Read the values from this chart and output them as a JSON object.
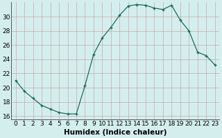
{
  "x": [
    0,
    1,
    2,
    3,
    4,
    5,
    6,
    7,
    8,
    9,
    10,
    11,
    12,
    13,
    14,
    15,
    16,
    17,
    18,
    19,
    20,
    21,
    22,
    23
  ],
  "y": [
    21.0,
    19.5,
    18.5,
    17.5,
    17.0,
    16.5,
    16.3,
    16.3,
    20.3,
    24.7,
    27.0,
    28.5,
    30.2,
    31.5,
    31.7,
    31.6,
    31.2,
    31.0,
    31.6,
    29.5,
    28.0,
    25.0,
    24.5,
    23.2
  ],
  "line_color": "#1a6b5a",
  "marker": "+",
  "bg_color": "#d4eeee",
  "grid_color": "#b8d8d8",
  "xlabel": "Humidex (Indice chaleur)",
  "ylim": [
    15.5,
    32
  ],
  "xlim": [
    -0.5,
    23.5
  ],
  "yticks": [
    16,
    18,
    20,
    22,
    24,
    26,
    28,
    30
  ],
  "xticks": [
    0,
    1,
    2,
    3,
    4,
    5,
    6,
    7,
    8,
    9,
    10,
    11,
    12,
    13,
    14,
    15,
    16,
    17,
    18,
    19,
    20,
    21,
    22,
    23
  ],
  "tick_font_size": 6.5,
  "label_font_size": 7.5
}
